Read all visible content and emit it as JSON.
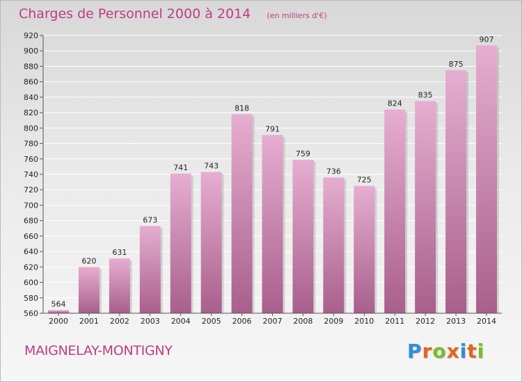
{
  "header": {
    "title": "Charges de Personnel 2000 à 2014",
    "unit": "(en milliers d'€)"
  },
  "footer": {
    "city": "MAIGNELAY-MONTIGNY",
    "logo_letters": [
      "P",
      "r",
      "o",
      "x",
      "i",
      "t",
      "i"
    ],
    "logo_colors": [
      "#2f8fd6",
      "#e8641e",
      "#7cbc2a",
      "#e8641e",
      "#2f8fd6",
      "#e8641e",
      "#7cbc2a"
    ]
  },
  "colors": {
    "bar": "#d792bd",
    "bar_light": "#e6aed0",
    "bar_dark": "#a85f8c",
    "grid": "#ffffff",
    "axis_text": "#222222",
    "accent": "#c03a86"
  },
  "chart_data": {
    "type": "bar",
    "title": "Charges de Personnel 2000 à 2014",
    "xlabel": "",
    "ylabel": "",
    "categories": [
      "2000",
      "2001",
      "2002",
      "2003",
      "2004",
      "2005",
      "2006",
      "2007",
      "2008",
      "2009",
      "2010",
      "2011",
      "2012",
      "2013",
      "2014"
    ],
    "values": [
      564,
      620,
      631,
      673,
      741,
      743,
      818,
      791,
      759,
      736,
      725,
      824,
      835,
      875,
      907
    ],
    "ylim": [
      560,
      920
    ],
    "yticks": [
      560,
      580,
      600,
      620,
      640,
      660,
      680,
      700,
      720,
      740,
      760,
      780,
      800,
      820,
      840,
      860,
      880,
      900,
      920
    ],
    "grid": true,
    "data_labels": true
  }
}
